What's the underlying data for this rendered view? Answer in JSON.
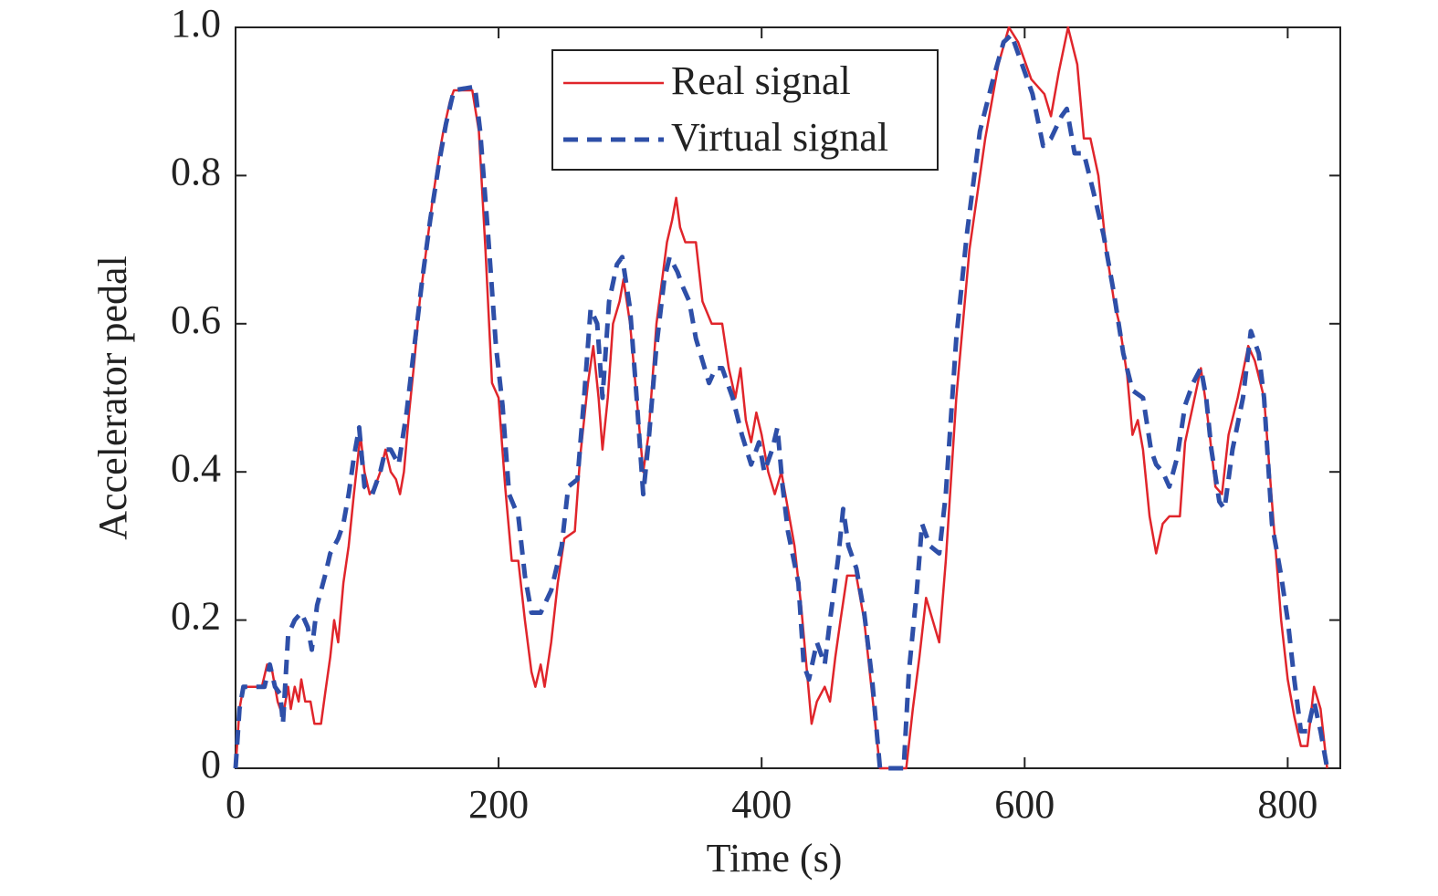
{
  "chart_data": {
    "type": "line",
    "xlabel": "Time (s)",
    "ylabel": "Accelerator pedal",
    "xlim": [
      0,
      840
    ],
    "ylim": [
      0,
      1
    ],
    "xticks": [
      0,
      200,
      400,
      600,
      800
    ],
    "yticks": [
      0,
      0.2,
      0.4,
      0.6,
      0.8,
      {
        "value": 1,
        "label": "1.0"
      }
    ],
    "legend": "upper center",
    "series": [
      {
        "name": "Real signal",
        "color": "#e0252b",
        "dash": false,
        "x": [
          0,
          3,
          6,
          20,
          24,
          28,
          32,
          36,
          38,
          40,
          42,
          45,
          48,
          50,
          53,
          57,
          60,
          65,
          68,
          72,
          75,
          78,
          82,
          86,
          90,
          95,
          98,
          102,
          106,
          110,
          114,
          118,
          122,
          125,
          128,
          132,
          136,
          140,
          145,
          150,
          155,
          158,
          163,
          166,
          180,
          185,
          190,
          195,
          200,
          205,
          210,
          215,
          220,
          225,
          228,
          232,
          235,
          240,
          245,
          250,
          258,
          262,
          268,
          272,
          276,
          279,
          283,
          287,
          292,
          295,
          300,
          305,
          310,
          314,
          320,
          328,
          332,
          335,
          338,
          342,
          350,
          355,
          362,
          370,
          375,
          380,
          384,
          388,
          392,
          396,
          400,
          405,
          410,
          415,
          420,
          425,
          430,
          435,
          438,
          442,
          448,
          452,
          456,
          460,
          465,
          472,
          478,
          484,
          490,
          510,
          515,
          520,
          525,
          530,
          535,
          540,
          548,
          558,
          570,
          580,
          588,
          595,
          605,
          615,
          620,
          626,
          633,
          640,
          645,
          650,
          656,
          662,
          668,
          672,
          678,
          682,
          686,
          690,
          695,
          700,
          705,
          710,
          718,
          722,
          728,
          734,
          738,
          742,
          745,
          750,
          755,
          762,
          770,
          775,
          782,
          788,
          795,
          800,
          805,
          810,
          815,
          820,
          825,
          830
        ],
        "values": [
          0,
          0.08,
          0.11,
          0.11,
          0.14,
          0.13,
          0.09,
          0.07,
          0.09,
          0.11,
          0.08,
          0.11,
          0.09,
          0.12,
          0.09,
          0.09,
          0.06,
          0.06,
          0.1,
          0.15,
          0.2,
          0.17,
          0.25,
          0.3,
          0.37,
          0.45,
          0.4,
          0.37,
          0.38,
          0.4,
          0.43,
          0.4,
          0.39,
          0.37,
          0.4,
          0.48,
          0.55,
          0.63,
          0.7,
          0.77,
          0.83,
          0.86,
          0.9,
          0.915,
          0.915,
          0.86,
          0.7,
          0.52,
          0.5,
          0.38,
          0.28,
          0.28,
          0.2,
          0.13,
          0.11,
          0.14,
          0.11,
          0.17,
          0.25,
          0.31,
          0.32,
          0.42,
          0.52,
          0.57,
          0.5,
          0.43,
          0.5,
          0.6,
          0.63,
          0.66,
          0.6,
          0.5,
          0.4,
          0.45,
          0.6,
          0.71,
          0.74,
          0.77,
          0.73,
          0.71,
          0.71,
          0.63,
          0.6,
          0.6,
          0.54,
          0.5,
          0.54,
          0.47,
          0.44,
          0.48,
          0.45,
          0.4,
          0.37,
          0.4,
          0.35,
          0.3,
          0.22,
          0.12,
          0.06,
          0.09,
          0.11,
          0.09,
          0.15,
          0.2,
          0.26,
          0.26,
          0.2,
          0.1,
          0,
          0,
          0.08,
          0.15,
          0.23,
          0.2,
          0.17,
          0.28,
          0.5,
          0.7,
          0.85,
          0.95,
          1,
          0.98,
          0.93,
          0.91,
          0.88,
          0.94,
          1,
          0.95,
          0.85,
          0.85,
          0.8,
          0.7,
          0.63,
          0.6,
          0.53,
          0.45,
          0.47,
          0.43,
          0.34,
          0.29,
          0.33,
          0.34,
          0.34,
          0.44,
          0.49,
          0.54,
          0.49,
          0.43,
          0.38,
          0.37,
          0.45,
          0.5,
          0.57,
          0.55,
          0.5,
          0.36,
          0.2,
          0.12,
          0.07,
          0.03,
          0.03,
          0.11,
          0.08,
          0
        ]
      },
      {
        "name": "Virtual signal",
        "color": "#2e4fa8",
        "dash": true,
        "x": [
          0,
          3,
          6,
          22,
          26,
          30,
          34,
          36,
          40,
          45,
          50,
          55,
          58,
          62,
          68,
          72,
          78,
          82,
          86,
          90,
          94,
          98,
          104,
          110,
          114,
          118,
          124,
          130,
          136,
          142,
          148,
          155,
          160,
          166,
          182,
          186,
          192,
          198,
          203,
          208,
          215,
          220,
          225,
          232,
          240,
          248,
          253,
          260,
          265,
          270,
          275,
          279,
          284,
          290,
          294,
          300,
          305,
          310,
          314,
          320,
          326,
          330,
          336,
          340,
          345,
          350,
          355,
          360,
          365,
          370,
          378,
          385,
          392,
          398,
          402,
          408,
          412,
          416,
          420,
          428,
          432,
          436,
          442,
          448,
          452,
          458,
          462,
          466,
          472,
          478,
          484,
          490,
          508,
          512,
          518,
          522,
          528,
          535,
          540,
          548,
          556,
          566,
          576,
          584,
          590,
          598,
          606,
          614,
          620,
          628,
          632,
          638,
          645,
          652,
          660,
          668,
          675,
          682,
          690,
          696,
          700,
          705,
          710,
          716,
          722,
          728,
          734,
          738,
          742,
          748,
          752,
          758,
          766,
          772,
          778,
          782,
          788,
          795,
          800,
          805,
          810,
          815,
          820,
          825,
          830
        ],
        "values": [
          0,
          0.08,
          0.11,
          0.11,
          0.14,
          0.11,
          0.1,
          0.06,
          0.18,
          0.2,
          0.21,
          0.19,
          0.16,
          0.22,
          0.26,
          0.29,
          0.31,
          0.33,
          0.37,
          0.42,
          0.46,
          0.38,
          0.37,
          0.4,
          0.43,
          0.43,
          0.41,
          0.48,
          0.57,
          0.66,
          0.74,
          0.82,
          0.87,
          0.915,
          0.92,
          0.86,
          0.72,
          0.57,
          0.49,
          0.37,
          0.34,
          0.26,
          0.21,
          0.21,
          0.24,
          0.3,
          0.38,
          0.39,
          0.5,
          0.62,
          0.6,
          0.5,
          0.63,
          0.68,
          0.69,
          0.62,
          0.5,
          0.37,
          0.44,
          0.57,
          0.66,
          0.69,
          0.67,
          0.65,
          0.63,
          0.58,
          0.55,
          0.52,
          0.54,
          0.54,
          0.5,
          0.45,
          0.41,
          0.44,
          0.4,
          0.43,
          0.46,
          0.38,
          0.32,
          0.25,
          0.14,
          0.12,
          0.17,
          0.14,
          0.2,
          0.28,
          0.35,
          0.3,
          0.27,
          0.21,
          0.12,
          0,
          0,
          0.13,
          0.24,
          0.33,
          0.3,
          0.29,
          0.37,
          0.58,
          0.72,
          0.86,
          0.93,
          0.98,
          0.99,
          0.95,
          0.91,
          0.84,
          0.85,
          0.88,
          0.89,
          0.83,
          0.83,
          0.78,
          0.72,
          0.64,
          0.56,
          0.51,
          0.5,
          0.43,
          0.41,
          0.4,
          0.38,
          0.42,
          0.49,
          0.52,
          0.54,
          0.5,
          0.43,
          0.36,
          0.35,
          0.43,
          0.5,
          0.59,
          0.56,
          0.5,
          0.33,
          0.26,
          0.2,
          0.12,
          0.05,
          0.05,
          0.09,
          0.05,
          0
        ]
      }
    ]
  }
}
